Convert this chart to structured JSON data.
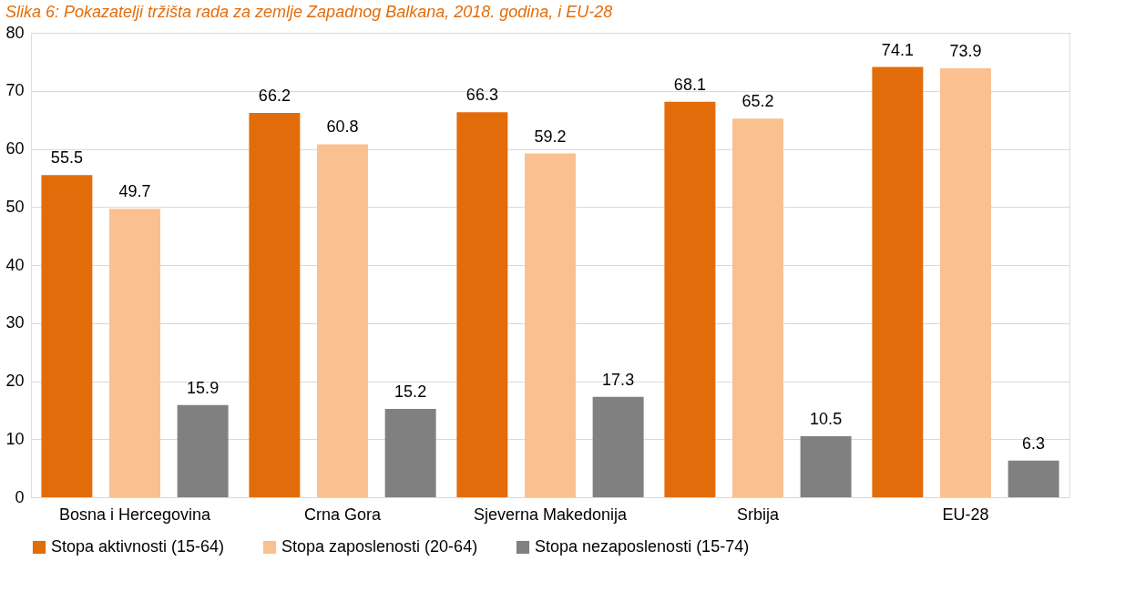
{
  "chart_data": {
    "type": "bar",
    "title": "Slika 6: Pokazatelji tržišta rada za zemlje Zapadnog Balkana, 2018. godina, i EU-28",
    "categories": [
      "Bosna i Hercegovina",
      "Crna Gora",
      "Sjeverna Makedonija",
      "Srbija",
      "EU-28"
    ],
    "series": [
      {
        "name": "Stopa aktivnosti (15-64)",
        "color": "#e36c0a",
        "values": [
          55.5,
          66.2,
          66.3,
          68.1,
          74.1
        ]
      },
      {
        "name": "Stopa zaposlenosti (20-64)",
        "color": "#fac090",
        "values": [
          49.7,
          60.8,
          59.2,
          65.2,
          73.9
        ]
      },
      {
        "name": "Stopa nezaposlenosti (15-74)",
        "color": "#808080",
        "values": [
          15.9,
          15.2,
          17.3,
          10.5,
          6.3
        ]
      }
    ],
    "ylim": [
      0,
      80
    ],
    "yticks": [
      0,
      10,
      20,
      30,
      40,
      50,
      60,
      70,
      80
    ],
    "grid": "y",
    "legend": "bottom",
    "data_labels": true
  }
}
